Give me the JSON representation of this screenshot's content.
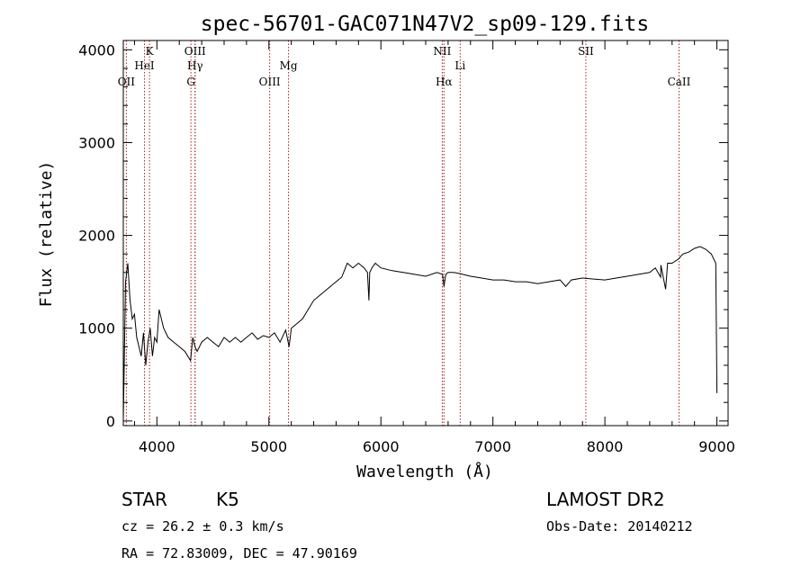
{
  "chart_data": {
    "type": "line",
    "title": "spec-56701-GAC071N47V2_sp09-129.fits",
    "xlabel": "Wavelength (Å)",
    "ylabel": "Flux (relative)",
    "xlim": [
      3700,
      9100
    ],
    "ylim": [
      -50,
      4100
    ],
    "x_ticks": [
      4000,
      5000,
      6000,
      7000,
      8000,
      9000
    ],
    "x_tick_labels": [
      "4000",
      "5000",
      "6000",
      "7000",
      "8000",
      "9000"
    ],
    "y_ticks": [
      0,
      1000,
      2000,
      3000,
      4000
    ],
    "y_tick_labels": [
      "0",
      "1000",
      "2000",
      "3000",
      "4000"
    ],
    "grid": false,
    "line_color": "#000000",
    "marker_color": "#aa2222",
    "series": [
      {
        "x": [
          3700,
          3720,
          3740,
          3760,
          3780,
          3800,
          3820,
          3840,
          3860,
          3880,
          3900,
          3920,
          3940,
          3960,
          3980,
          4000,
          4020,
          4040,
          4060,
          4080,
          4100,
          4150,
          4200,
          4250,
          4300,
          4320,
          4340,
          4360,
          4400,
          4450,
          4500,
          4550,
          4600,
          4650,
          4700,
          4750,
          4800,
          4850,
          4900,
          4950,
          5000,
          5050,
          5100,
          5150,
          5180,
          5200,
          5250,
          5300,
          5350,
          5400,
          5450,
          5500,
          5550,
          5600,
          5650,
          5700,
          5750,
          5800,
          5850,
          5880,
          5893,
          5900,
          5920,
          5950,
          6000,
          6100,
          6200,
          6300,
          6400,
          6500,
          6550,
          6563,
          6580,
          6600,
          6650,
          6700,
          6800,
          6900,
          7000,
          7100,
          7200,
          7300,
          7400,
          7500,
          7600,
          7650,
          7700,
          7800,
          7900,
          8000,
          8100,
          8200,
          8300,
          8400,
          8450,
          8498,
          8500,
          8542,
          8560,
          8600,
          8662,
          8680,
          8700,
          8750,
          8800,
          8850,
          8900,
          8950,
          8990,
          9000
        ],
        "y": [
          0,
          1500,
          1700,
          1300,
          1100,
          1150,
          900,
          800,
          700,
          950,
          600,
          850,
          1000,
          700,
          900,
          850,
          1200,
          1100,
          1000,
          950,
          900,
          850,
          800,
          750,
          650,
          900,
          800,
          750,
          850,
          900,
          850,
          800,
          900,
          850,
          900,
          850,
          900,
          950,
          880,
          920,
          900,
          950,
          850,
          980,
          800,
          1000,
          1050,
          1100,
          1200,
          1300,
          1350,
          1400,
          1450,
          1500,
          1550,
          1700,
          1650,
          1700,
          1650,
          1600,
          1300,
          1600,
          1650,
          1700,
          1650,
          1620,
          1600,
          1580,
          1560,
          1600,
          1580,
          1450,
          1580,
          1600,
          1600,
          1590,
          1560,
          1540,
          1520,
          1520,
          1500,
          1500,
          1480,
          1500,
          1520,
          1450,
          1520,
          1540,
          1530,
          1520,
          1540,
          1560,
          1580,
          1600,
          1650,
          1550,
          1680,
          1420,
          1700,
          1700,
          1750,
          1780,
          1800,
          1820,
          1860,
          1880,
          1850,
          1800,
          1700,
          300
        ]
      }
    ],
    "lines": [
      {
        "label": "OII",
        "x": 3727,
        "row": 3
      },
      {
        "label": "HeI",
        "x": 3889,
        "row": 2
      },
      {
        "label": "K",
        "x": 3934,
        "row": 1
      },
      {
        "label": "G",
        "x": 4304,
        "row": 3
      },
      {
        "label": "OIII",
        "x": 4341,
        "row": 1
      },
      {
        "label": "Hγ",
        "x": 4341,
        "row": 2
      },
      {
        "label": "OIII",
        "x": 5007,
        "row": 3
      },
      {
        "label": "Mg",
        "x": 5175,
        "row": 2
      },
      {
        "label": "NII",
        "x": 6548,
        "row": 1
      },
      {
        "label": "Hα",
        "x": 6563,
        "row": 3
      },
      {
        "label": "Li",
        "x": 6708,
        "row": 2
      },
      {
        "label": "SII",
        "x": 7830,
        "row": 1
      },
      {
        "label": "CaII",
        "x": 8662,
        "row": 3
      }
    ]
  },
  "info": {
    "object_type": "STAR",
    "subclass": "K5",
    "survey": "LAMOST DR2",
    "redshift": "cz = 26.2 ± 0.3 km/s",
    "obs_date": "Obs-Date: 20140212",
    "coords": "RA =  72.83009, DEC =  47.90169"
  }
}
